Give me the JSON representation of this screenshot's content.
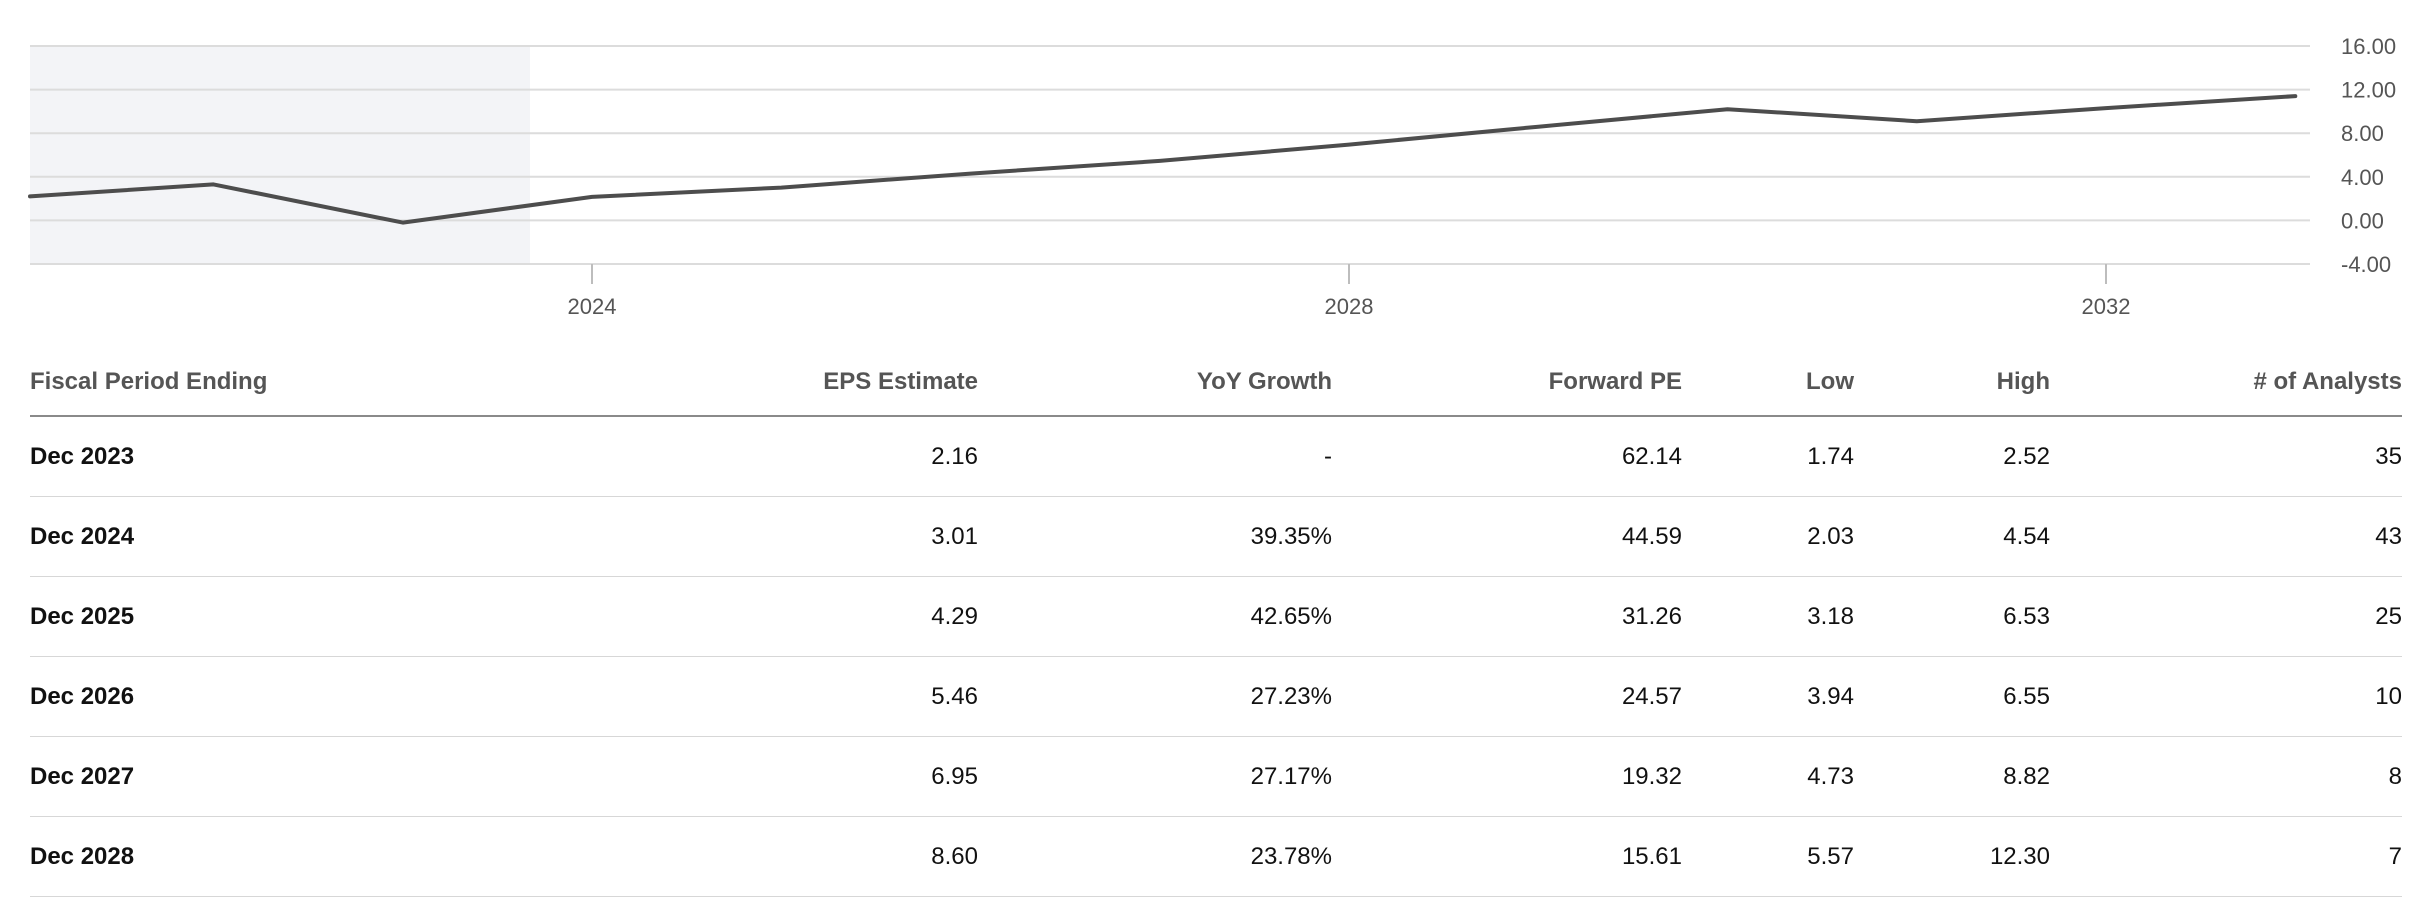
{
  "chart_data": {
    "type": "line",
    "title": "",
    "xlabel": "",
    "ylabel": "",
    "x_tick_labels": [
      "2024",
      "2028",
      "2032"
    ],
    "y_tick_labels": [
      "16.00",
      "12.00",
      "8.00",
      "4.00",
      "0.00",
      "-4.00"
    ],
    "ylim": [
      -4,
      16
    ],
    "grid": true,
    "shaded_region": "history",
    "series": [
      {
        "values": [
          {
            "x": 2021,
            "y": 2.2
          },
          {
            "x": 2022,
            "y": 3.3
          },
          {
            "x": 2023,
            "y": -0.2
          },
          {
            "x": 2024,
            "y": 2.16
          },
          {
            "x": 2025,
            "y": 3.01
          },
          {
            "x": 2026,
            "y": 4.29
          },
          {
            "x": 2027,
            "y": 5.46
          },
          {
            "x": 2028,
            "y": 6.95
          },
          {
            "x": 2029,
            "y": 8.6
          },
          {
            "x": 2030,
            "y": 10.2
          },
          {
            "x": 2031,
            "y": 9.1
          },
          {
            "x": 2032,
            "y": 10.3
          },
          {
            "x": 2033,
            "y": 11.4
          }
        ]
      }
    ]
  },
  "colors": {
    "line": "#4d4d4d",
    "shade": "#f3f4f7",
    "grid": "#dcdcdc",
    "tick_text": "#555555"
  },
  "table": {
    "headers": [
      "Fiscal Period Ending",
      "EPS Estimate",
      "YoY Growth",
      "Forward PE",
      "Low",
      "High",
      "# of Analysts"
    ],
    "rows": [
      [
        "Dec 2023",
        "2.16",
        "-",
        "62.14",
        "1.74",
        "2.52",
        "35"
      ],
      [
        "Dec 2024",
        "3.01",
        "39.35%",
        "44.59",
        "2.03",
        "4.54",
        "43"
      ],
      [
        "Dec 2025",
        "4.29",
        "42.65%",
        "31.26",
        "3.18",
        "6.53",
        "25"
      ],
      [
        "Dec 2026",
        "5.46",
        "27.23%",
        "24.57",
        "3.94",
        "6.55",
        "10"
      ],
      [
        "Dec 2027",
        "6.95",
        "27.17%",
        "19.32",
        "4.73",
        "8.82",
        "8"
      ],
      [
        "Dec 2028",
        "8.60",
        "23.78%",
        "15.61",
        "5.57",
        "12.30",
        "7"
      ]
    ]
  }
}
